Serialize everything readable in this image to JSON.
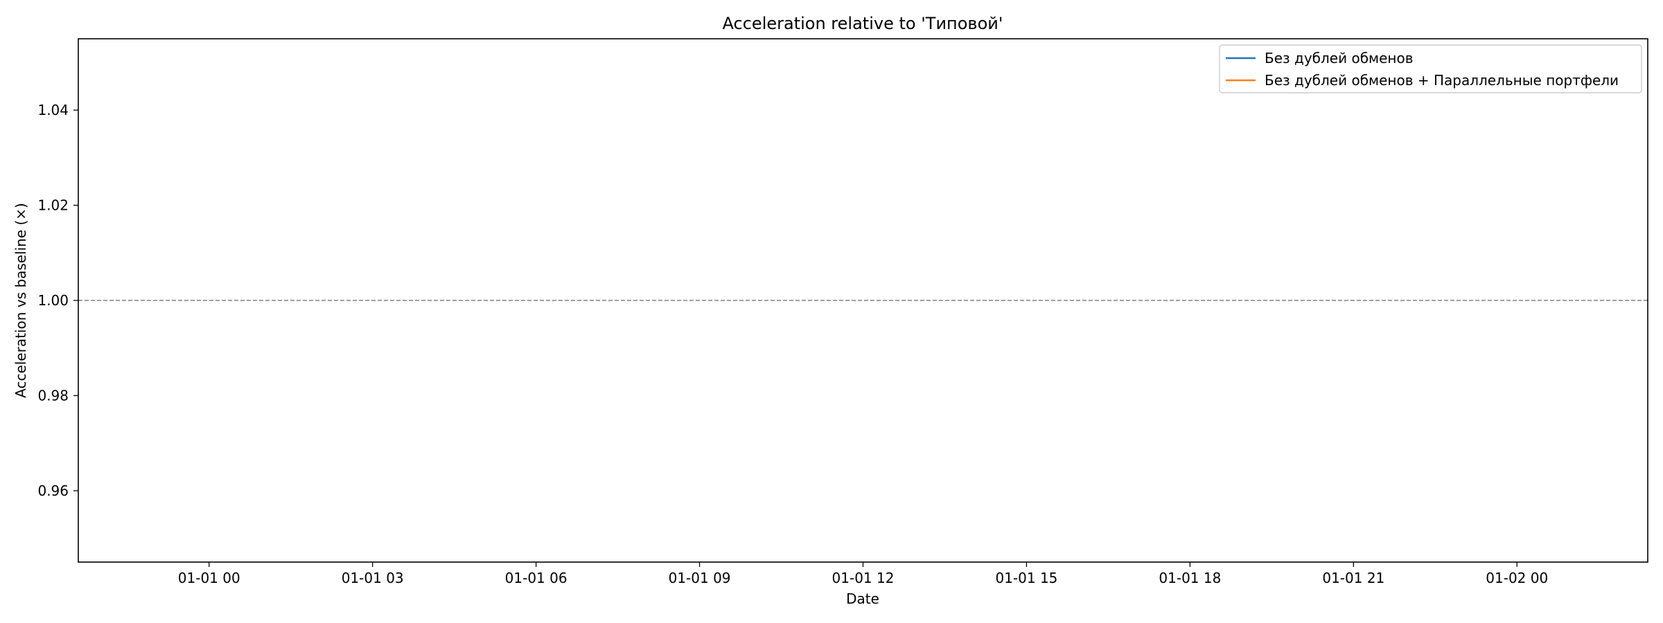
{
  "chart_data": {
    "type": "line",
    "title": "Acceleration relative to 'Типовой'",
    "xlabel": "Date",
    "ylabel": "Acceleration vs baseline (×)",
    "xlim": [
      "2023-12-31T21:36",
      "2024-01-02T02:24"
    ],
    "ylim": [
      0.945,
      1.055
    ],
    "x_ticks": [
      "01-01 00",
      "01-01 03",
      "01-01 06",
      "01-01 09",
      "01-01 12",
      "01-01 15",
      "01-01 18",
      "01-01 21",
      "01-02 00"
    ],
    "x_tick_values": [
      "2024-01-01T00:00",
      "2024-01-01T03:00",
      "2024-01-01T06:00",
      "2024-01-01T09:00",
      "2024-01-01T12:00",
      "2024-01-01T15:00",
      "2024-01-01T18:00",
      "2024-01-01T21:00",
      "2024-01-02T00:00"
    ],
    "y_ticks": [
      0.96,
      0.98,
      1.0,
      1.02,
      1.04
    ],
    "y_tick_labels": [
      "0.96",
      "0.98",
      "1.00",
      "1.02",
      "1.04"
    ],
    "reference_line": {
      "y": 1.0,
      "style": "dashed",
      "color": "#808080"
    },
    "series": [
      {
        "name": "Без дублей обменов",
        "color": "#1f77b4",
        "x": [],
        "y": []
      },
      {
        "name": "Без дублей обменов + Параллельные портфели",
        "color": "#ff7f0e",
        "x": [],
        "y": []
      }
    ],
    "legend": "top-right",
    "grid": false
  }
}
